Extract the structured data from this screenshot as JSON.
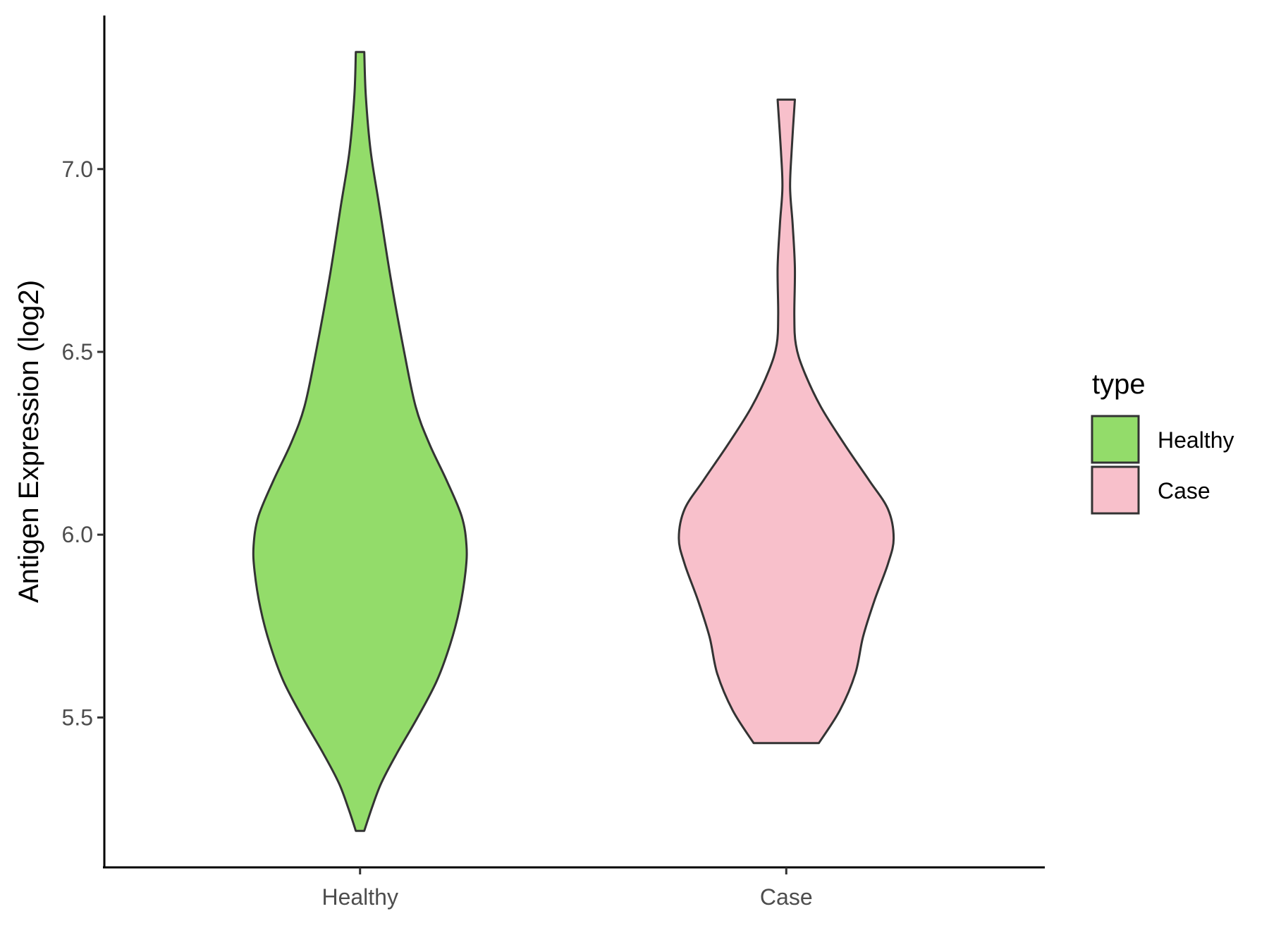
{
  "chart_data": {
    "type": "violin",
    "title": "",
    "xlabel": "",
    "ylabel": "Antigen Expression (log2)",
    "categories": [
      "Healthy",
      "Case"
    ],
    "ylim": [
      5.09,
      7.42
    ],
    "yticks": [
      {
        "value": 5.5,
        "label": "5.5"
      },
      {
        "value": 6.0,
        "label": "6.0"
      },
      {
        "value": 6.5,
        "label": "6.5"
      },
      {
        "value": 7.0,
        "label": "7.0"
      }
    ],
    "grid": false,
    "legend": {
      "title": "type",
      "position": "right",
      "entries": [
        {
          "label": "Healthy",
          "color": "#93dc6a"
        },
        {
          "label": "Case",
          "color": "#f8c0cb"
        }
      ]
    },
    "outline_color": "#333333",
    "series": [
      {
        "name": "Healthy",
        "color": "#93dc6a",
        "min": 5.19,
        "max": 7.32,
        "profile": [
          {
            "y": 5.19,
            "w": 0.022
          },
          {
            "y": 5.25,
            "w": 0.06
          },
          {
            "y": 5.32,
            "w": 0.11
          },
          {
            "y": 5.4,
            "w": 0.19
          },
          {
            "y": 5.5,
            "w": 0.3
          },
          {
            "y": 5.6,
            "w": 0.4
          },
          {
            "y": 5.7,
            "w": 0.47
          },
          {
            "y": 5.8,
            "w": 0.52
          },
          {
            "y": 5.9,
            "w": 0.55
          },
          {
            "y": 5.97,
            "w": 0.555
          },
          {
            "y": 6.05,
            "w": 0.53
          },
          {
            "y": 6.15,
            "w": 0.45
          },
          {
            "y": 6.25,
            "w": 0.36
          },
          {
            "y": 6.35,
            "w": 0.29
          },
          {
            "y": 6.5,
            "w": 0.23
          },
          {
            "y": 6.7,
            "w": 0.16
          },
          {
            "y": 6.9,
            "w": 0.1
          },
          {
            "y": 7.05,
            "w": 0.055
          },
          {
            "y": 7.2,
            "w": 0.03
          },
          {
            "y": 7.32,
            "w": 0.022
          }
        ]
      },
      {
        "name": "Case",
        "color": "#f8c0cb",
        "min": 5.43,
        "max": 7.19,
        "profile": [
          {
            "y": 5.43,
            "w": 0.17
          },
          {
            "y": 5.52,
            "w": 0.28
          },
          {
            "y": 5.62,
            "w": 0.36
          },
          {
            "y": 5.72,
            "w": 0.4
          },
          {
            "y": 5.82,
            "w": 0.46
          },
          {
            "y": 5.92,
            "w": 0.53
          },
          {
            "y": 5.99,
            "w": 0.56
          },
          {
            "y": 6.07,
            "w": 0.53
          },
          {
            "y": 6.15,
            "w": 0.43
          },
          {
            "y": 6.25,
            "w": 0.3
          },
          {
            "y": 6.35,
            "w": 0.18
          },
          {
            "y": 6.45,
            "w": 0.09
          },
          {
            "y": 6.52,
            "w": 0.05
          },
          {
            "y": 6.6,
            "w": 0.042
          },
          {
            "y": 6.73,
            "w": 0.045
          },
          {
            "y": 6.85,
            "w": 0.033
          },
          {
            "y": 6.95,
            "w": 0.02
          },
          {
            "y": 7.05,
            "w": 0.028
          },
          {
            "y": 7.19,
            "w": 0.045
          }
        ]
      }
    ]
  }
}
